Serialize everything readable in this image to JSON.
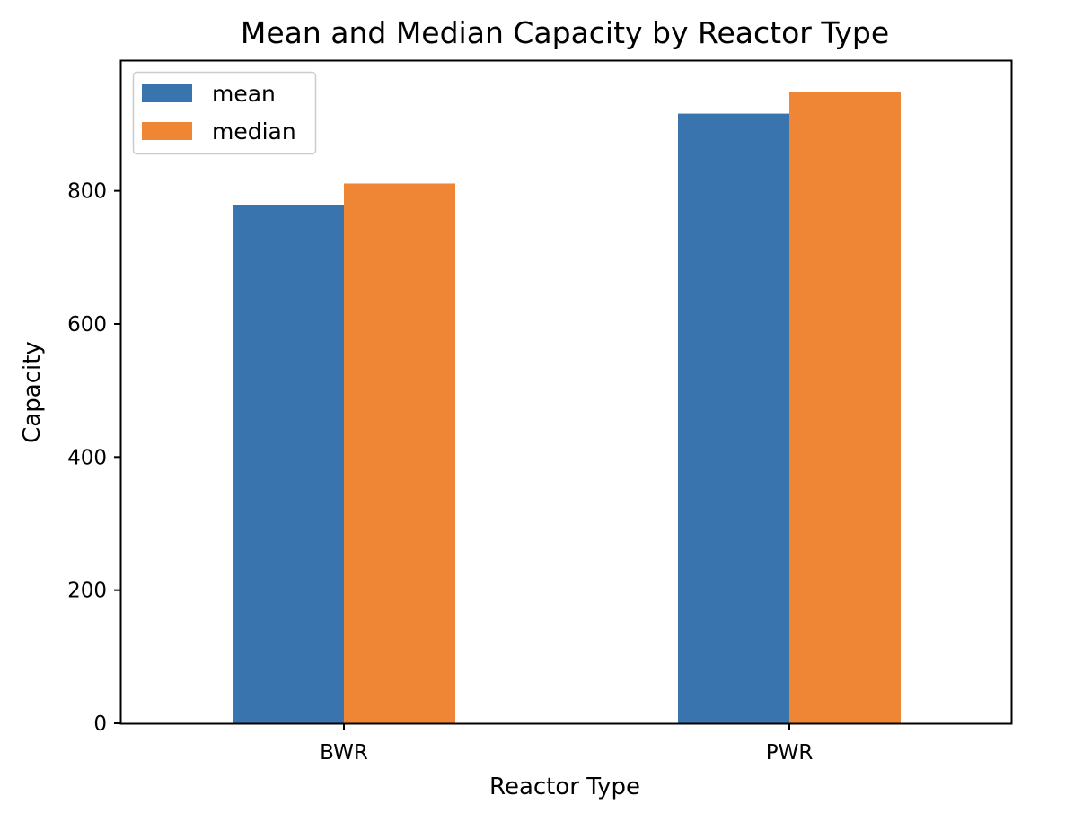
{
  "chart_data": {
    "type": "bar",
    "title": "Mean and Median Capacity by Reactor Type",
    "xlabel": "Reactor Type",
    "ylabel": "Capacity",
    "categories": [
      "BWR",
      "PWR"
    ],
    "series": [
      {
        "name": "mean",
        "values": [
          779,
          916
        ],
        "color": "#3a74ae"
      },
      {
        "name": "median",
        "values": [
          811,
          948
        ],
        "color": "#ef8635"
      }
    ],
    "ylim": [
      0,
      995
    ],
    "yticks": [
      0,
      200,
      400,
      600,
      800
    ],
    "grid": false,
    "legend_position": "top-left"
  }
}
